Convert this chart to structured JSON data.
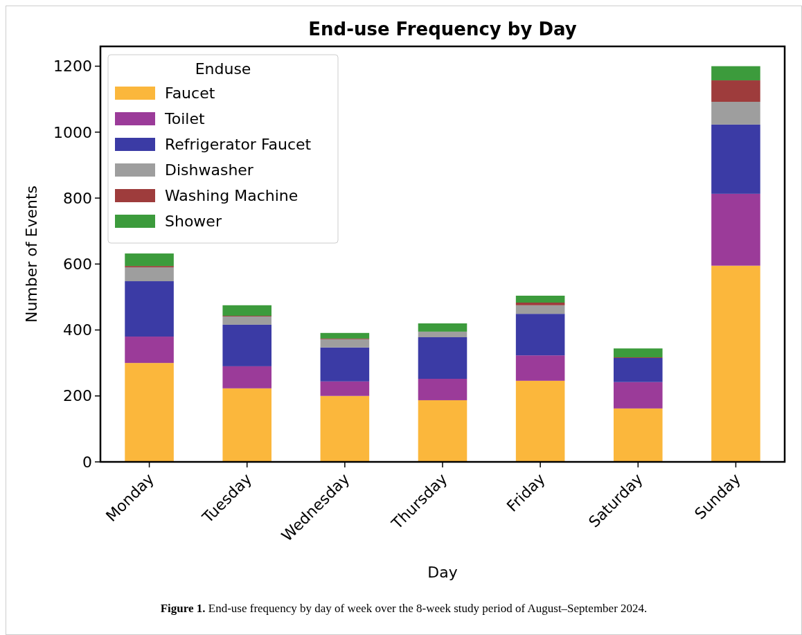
{
  "chart_data": {
    "type": "bar",
    "stacked": true,
    "title": "End-use Frequency by Day",
    "xlabel": "Day",
    "ylabel": "Number of Events",
    "legend_title": "Enduse",
    "legend": "top left",
    "grid": false,
    "categories": [
      "Monday",
      "Tuesday",
      "Wednesday",
      "Thursday",
      "Friday",
      "Saturday",
      "Sunday"
    ],
    "ylim": [
      0,
      1260
    ],
    "yticks": [
      0,
      200,
      400,
      600,
      800,
      1000,
      1200
    ],
    "series": [
      {
        "name": "Faucet",
        "color": "#fbb73c",
        "values": [
          300,
          223,
          200,
          187,
          246,
          162,
          595
        ]
      },
      {
        "name": "Toilet",
        "color": "#9b3b99",
        "values": [
          80,
          67,
          44,
          65,
          77,
          80,
          218
        ]
      },
      {
        "name": "Refrigerator Faucet",
        "color": "#3b3ba5",
        "values": [
          168,
          126,
          103,
          126,
          126,
          73,
          210
        ]
      },
      {
        "name": "Dishwasher",
        "color": "#9e9e9e",
        "values": [
          42,
          25,
          25,
          17,
          26,
          0,
          69
        ]
      },
      {
        "name": "Washing Machine",
        "color": "#9e3c3c",
        "values": [
          4,
          2,
          2,
          0,
          8,
          2,
          65
        ]
      },
      {
        "name": "Shower",
        "color": "#3c9b3c",
        "values": [
          38,
          32,
          17,
          25,
          21,
          27,
          43
        ]
      }
    ],
    "annotations": [
      "Figure 1. End-use frequency by day of week over the 8-week study period of August–September 2024."
    ]
  }
}
